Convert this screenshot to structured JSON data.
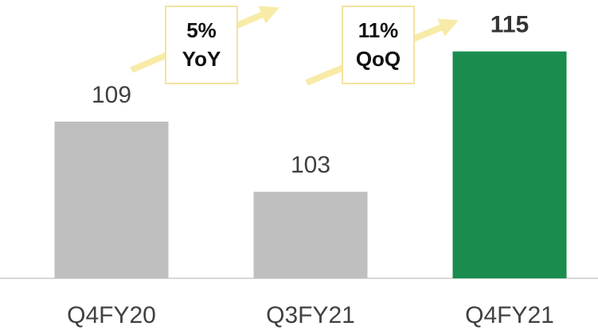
{
  "chart_data": {
    "type": "bar",
    "categories": [
      "Q4FY20",
      "Q3FY21",
      "Q4FY21"
    ],
    "values": [
      109,
      103,
      115
    ],
    "colors": [
      "#bfbfbf",
      "#bfbfbf",
      "#1a8c4e"
    ],
    "ylim": [
      95.6,
      119.4
    ],
    "annotations": [
      {
        "lines": [
          "5%",
          "YoY"
        ]
      },
      {
        "lines": [
          "11%",
          "QoQ"
        ]
      }
    ]
  }
}
